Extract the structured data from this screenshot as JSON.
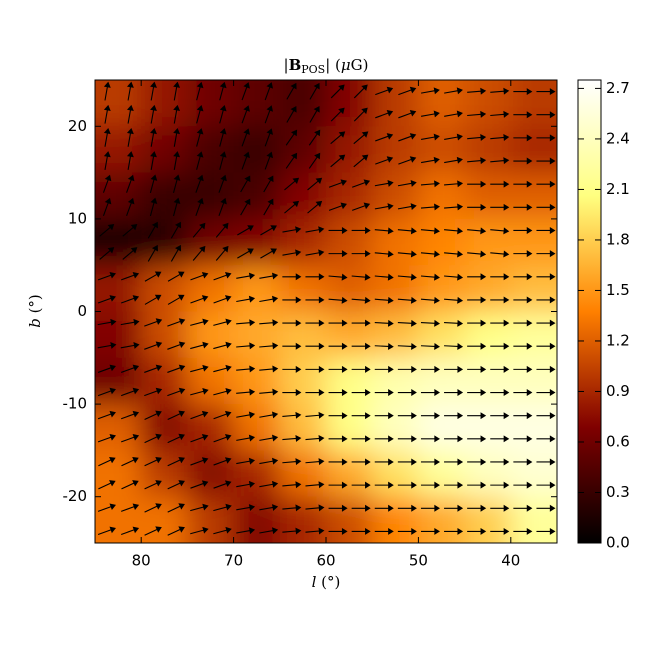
{
  "chart_data": {
    "type": "heatmap",
    "title": [
      "|",
      "B",
      "POS",
      "| (",
      "μ",
      "G)"
    ],
    "xlabel": [
      "l",
      " (°)"
    ],
    "ylabel": [
      "b",
      " (°)"
    ],
    "xlim": [
      85,
      35
    ],
    "xticks": [
      80,
      70,
      60,
      50,
      40
    ],
    "ylim": [
      -25,
      25
    ],
    "yticks": [
      -20,
      -10,
      0,
      10,
      20
    ],
    "clim": [
      0,
      2.75
    ],
    "colorbar_ticks": [
      {
        "value": 0,
        "label": "0.0"
      },
      {
        "value": 0.3,
        "label": "0.3"
      },
      {
        "value": 0.6,
        "label": "0.6"
      },
      {
        "value": 0.9,
        "label": "0.9"
      },
      {
        "value": 1.2,
        "label": "1.2"
      },
      {
        "value": 1.5,
        "label": "1.5"
      },
      {
        "value": 1.8,
        "label": "1.8"
      },
      {
        "value": 2.1,
        "label": "2.1"
      },
      {
        "value": 2.4,
        "label": "2.4"
      },
      {
        "value": 2.7,
        "label": "2.7"
      }
    ],
    "colormap": "afmhot",
    "values": [
      [
        1.0,
        0.8,
        0.6,
        0.5,
        0.4,
        0.7,
        1.0,
        1.2,
        1.1,
        1.0
      ],
      [
        0.8,
        0.6,
        0.4,
        0.3,
        0.5,
        0.8,
        1.0,
        1.1,
        1.0,
        0.9
      ],
      [
        0.5,
        0.3,
        0.3,
        0.4,
        0.7,
        0.9,
        1.1,
        1.3,
        1.2,
        1.2
      ],
      [
        0.1,
        0.2,
        0.6,
        0.7,
        0.9,
        1.1,
        1.3,
        1.4,
        1.5,
        1.5
      ],
      [
        0.8,
        1.1,
        1.3,
        1.5,
        1.3,
        1.2,
        1.3,
        1.5,
        1.6,
        1.7
      ],
      [
        0.7,
        1.1,
        1.5,
        1.6,
        1.7,
        1.6,
        1.7,
        1.9,
        2.1,
        2.2
      ],
      [
        0.6,
        0.9,
        1.3,
        1.5,
        1.8,
        2.1,
        2.3,
        2.4,
        2.4,
        2.4
      ],
      [
        1.2,
        0.7,
        0.9,
        1.3,
        1.7,
        2.1,
        2.4,
        2.6,
        2.6,
        2.6
      ],
      [
        1.3,
        1.0,
        0.7,
        0.9,
        1.3,
        1.6,
        1.9,
        2.2,
        2.4,
        2.5
      ],
      [
        1.3,
        1.3,
        1.0,
        0.7,
        0.9,
        1.1,
        1.4,
        1.6,
        1.8,
        2.2
      ]
    ],
    "vector_angles": [
      [
        80,
        80,
        75,
        70,
        60,
        45,
        20,
        10,
        5,
        0
      ],
      [
        80,
        80,
        75,
        70,
        55,
        40,
        20,
        10,
        5,
        0
      ],
      [
        70,
        75,
        70,
        60,
        40,
        20,
        10,
        5,
        0,
        0
      ],
      [
        40,
        60,
        50,
        30,
        10,
        0,
        -5,
        -5,
        -5,
        0
      ],
      [
        20,
        30,
        20,
        10,
        0,
        -5,
        -5,
        -5,
        0,
        0
      ],
      [
        10,
        20,
        15,
        5,
        0,
        0,
        -3,
        -3,
        0,
        0
      ],
      [
        20,
        20,
        15,
        5,
        0,
        0,
        0,
        0,
        0,
        0
      ],
      [
        20,
        25,
        20,
        10,
        5,
        0,
        0,
        0,
        0,
        0
      ],
      [
        25,
        25,
        20,
        10,
        5,
        0,
        0,
        0,
        0,
        0
      ],
      [
        20,
        25,
        15,
        10,
        5,
        0,
        0,
        0,
        0,
        0
      ]
    ]
  }
}
